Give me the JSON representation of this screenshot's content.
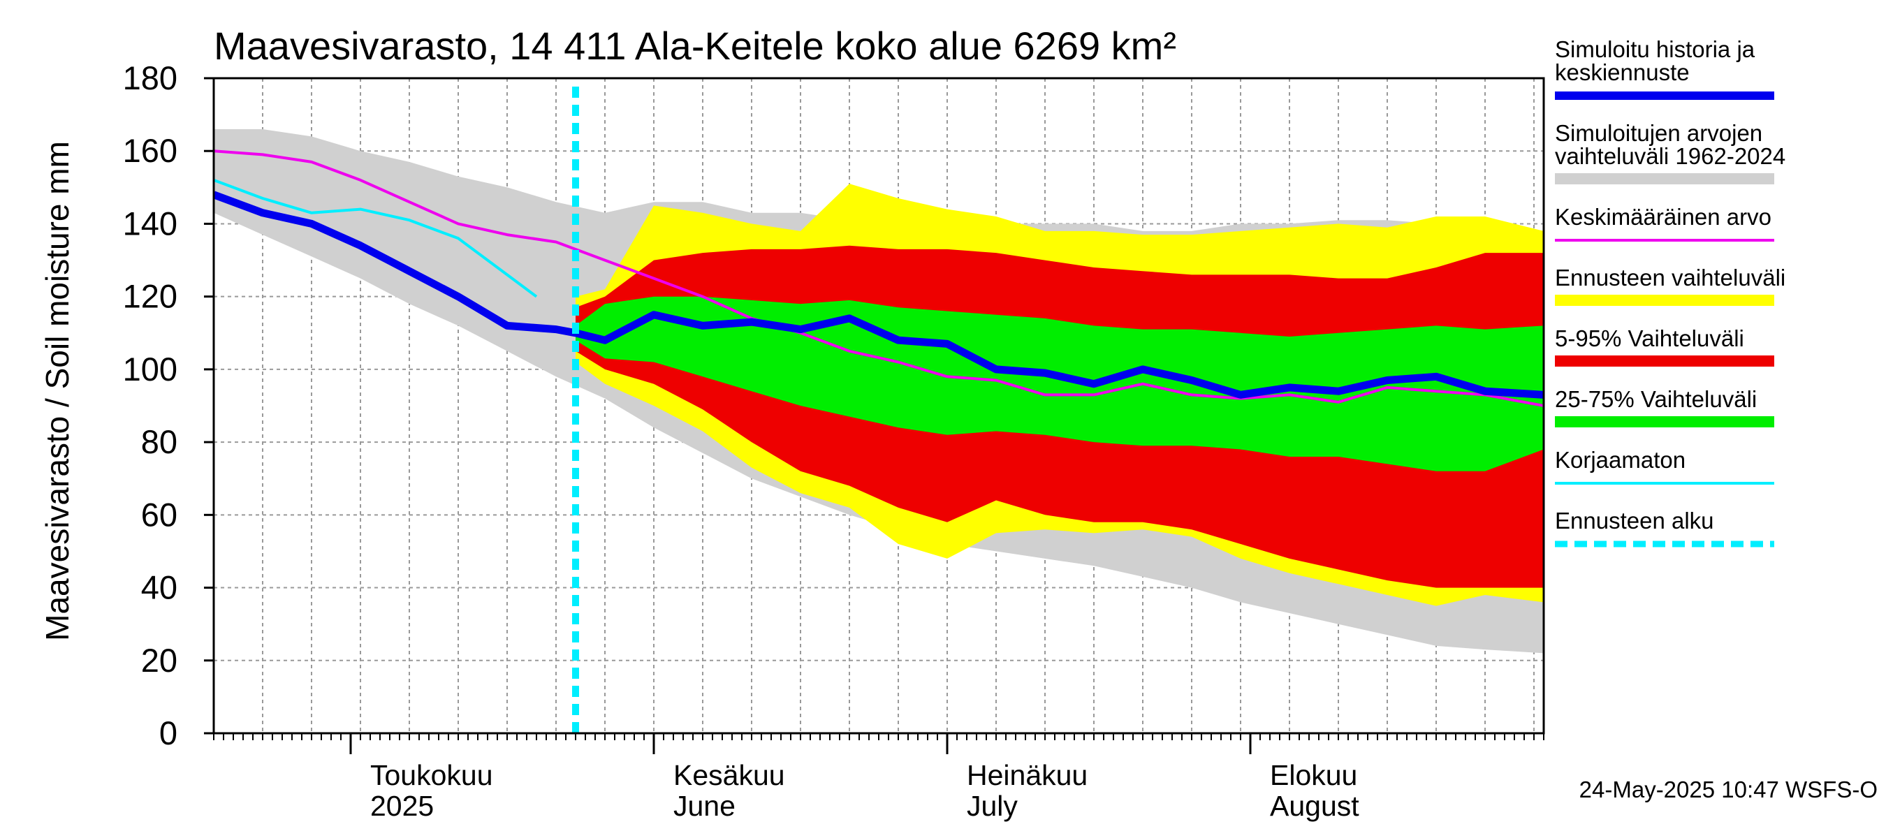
{
  "chart_data": {
    "type": "area",
    "title": "Maavesivarasto, 14 411 Ala-Keitele koko alue 6269 km²",
    "ylabel": "Maavesivarasto / Soil moisture   mm",
    "ylim": [
      0,
      180
    ],
    "yticks": [
      0,
      20,
      40,
      60,
      80,
      100,
      120,
      140,
      160,
      180
    ],
    "xlim": [
      "2025-04-17",
      "2025-08-31"
    ],
    "grid": true,
    "months": [
      {
        "date": "2025-05-01",
        "line1": "Toukokuu",
        "line2": "2025"
      },
      {
        "date": "2025-06-01",
        "line1": "Kesäkuu",
        "line2": "June"
      },
      {
        "date": "2025-07-01",
        "line1": "Heinäkuu",
        "line2": "July"
      },
      {
        "date": "2025-08-01",
        "line1": "Elokuu",
        "line2": "August"
      }
    ],
    "forecast_start": "2025-05-24",
    "timestamp": "24-May-2025 10:47 WSFS-O",
    "colors": {
      "history": "#0000ee",
      "range_hist": "#d0d0d0",
      "mean": "#ee00ee",
      "forecast_range": "#ffff00",
      "p5_95": "#ee0000",
      "p25_75": "#00ee00",
      "uncorrected": "#00eeff",
      "forecast_start": "#00eeff"
    },
    "legend": [
      {
        "key": "history",
        "line1": "Simuloitu historia ja",
        "line2": "keskiennuste"
      },
      {
        "key": "range_hist",
        "line1": "Simuloitujen arvojen",
        "line2": "vaihteluväli 1962-2024"
      },
      {
        "key": "mean",
        "line1": "Keskimääräinen arvo",
        "line2": ""
      },
      {
        "key": "forecast_range",
        "line1": "Ennusteen vaihteluväli",
        "line2": ""
      },
      {
        "key": "p5_95",
        "line1": "5-95% Vaihteluväli",
        "line2": ""
      },
      {
        "key": "p25_75",
        "line1": "25-75% Vaihteluväli",
        "line2": ""
      },
      {
        "key": "uncorrected",
        "line1": "Korjaamaton",
        "line2": ""
      },
      {
        "key": "forecast_start",
        "line1": "Ennusteen alku",
        "line2": ""
      }
    ],
    "series": {
      "range_hist": {
        "x": [
          "2025-04-17",
          "2025-04-22",
          "2025-04-27",
          "2025-05-02",
          "2025-05-07",
          "2025-05-12",
          "2025-05-17",
          "2025-05-22",
          "2025-05-27",
          "2025-06-01",
          "2025-06-06",
          "2025-06-11",
          "2025-06-16",
          "2025-06-21",
          "2025-06-26",
          "2025-07-01",
          "2025-07-06",
          "2025-07-11",
          "2025-07-16",
          "2025-07-21",
          "2025-07-26",
          "2025-07-31",
          "2025-08-05",
          "2025-08-10",
          "2025-08-15",
          "2025-08-20",
          "2025-08-25",
          "2025-08-31"
        ],
        "upper": [
          166,
          166,
          164,
          160,
          157,
          153,
          150,
          146,
          143,
          146,
          146,
          143,
          143,
          141,
          141,
          141,
          140,
          140,
          140,
          138,
          138,
          140,
          140,
          141,
          141,
          140,
          138,
          135
        ],
        "lower": [
          143,
          137,
          131,
          125,
          118,
          112,
          105,
          98,
          92,
          84,
          77,
          70,
          65,
          60,
          56,
          52,
          50,
          48,
          46,
          43,
          40,
          36,
          33,
          30,
          27,
          24,
          23,
          22
        ]
      },
      "forecast_range": {
        "x": [
          "2025-05-24",
          "2025-05-27",
          "2025-06-01",
          "2025-06-06",
          "2025-06-11",
          "2025-06-16",
          "2025-06-21",
          "2025-06-26",
          "2025-07-01",
          "2025-07-06",
          "2025-07-11",
          "2025-07-16",
          "2025-07-21",
          "2025-07-26",
          "2025-07-31",
          "2025-08-05",
          "2025-08-10",
          "2025-08-15",
          "2025-08-20",
          "2025-08-25",
          "2025-08-31"
        ],
        "upper": [
          120,
          122,
          145,
          143,
          140,
          138,
          151,
          147,
          144,
          142,
          138,
          138,
          137,
          137,
          138,
          139,
          140,
          139,
          142,
          142,
          138
        ],
        "lower": [
          102,
          96,
          90,
          83,
          73,
          66,
          62,
          52,
          48,
          55,
          56,
          55,
          56,
          54,
          48,
          44,
          41,
          38,
          35,
          38,
          36
        ]
      },
      "p5_95": {
        "x": [
          "2025-05-24",
          "2025-05-27",
          "2025-06-01",
          "2025-06-06",
          "2025-06-11",
          "2025-06-16",
          "2025-06-21",
          "2025-06-26",
          "2025-07-01",
          "2025-07-06",
          "2025-07-11",
          "2025-07-16",
          "2025-07-21",
          "2025-07-26",
          "2025-07-31",
          "2025-08-05",
          "2025-08-10",
          "2025-08-15",
          "2025-08-20",
          "2025-08-25",
          "2025-08-31"
        ],
        "upper": [
          117,
          120,
          130,
          132,
          133,
          133,
          134,
          133,
          133,
          132,
          130,
          128,
          127,
          126,
          126,
          126,
          125,
          125,
          128,
          132,
          132
        ],
        "lower": [
          105,
          100,
          96,
          89,
          80,
          72,
          68,
          62,
          58,
          64,
          60,
          58,
          58,
          56,
          52,
          48,
          45,
          42,
          40,
          40,
          40
        ]
      },
      "p25_75": {
        "x": [
          "2025-05-24",
          "2025-05-27",
          "2025-06-01",
          "2025-06-06",
          "2025-06-11",
          "2025-06-16",
          "2025-06-21",
          "2025-06-26",
          "2025-07-01",
          "2025-07-06",
          "2025-07-11",
          "2025-07-16",
          "2025-07-21",
          "2025-07-26",
          "2025-07-31",
          "2025-08-05",
          "2025-08-10",
          "2025-08-15",
          "2025-08-20",
          "2025-08-25",
          "2025-08-31"
        ],
        "upper": [
          112,
          118,
          120,
          120,
          119,
          118,
          119,
          117,
          116,
          115,
          114,
          112,
          111,
          111,
          110,
          109,
          110,
          111,
          112,
          111,
          112
        ],
        "lower": [
          108,
          103,
          102,
          98,
          94,
          90,
          87,
          84,
          82,
          83,
          82,
          80,
          79,
          79,
          78,
          76,
          76,
          74,
          72,
          72,
          78
        ]
      },
      "mean": {
        "x": [
          "2025-04-17",
          "2025-04-22",
          "2025-04-27",
          "2025-05-02",
          "2025-05-07",
          "2025-05-12",
          "2025-05-17",
          "2025-05-22",
          "2025-05-27",
          "2025-06-01",
          "2025-06-06",
          "2025-06-11",
          "2025-06-16",
          "2025-06-21",
          "2025-06-26",
          "2025-07-01",
          "2025-07-06",
          "2025-07-11",
          "2025-07-16",
          "2025-07-21",
          "2025-07-26",
          "2025-07-31",
          "2025-08-05",
          "2025-08-10",
          "2025-08-15",
          "2025-08-20",
          "2025-08-25",
          "2025-08-31"
        ],
        "values": [
          160,
          159,
          157,
          152,
          146,
          140,
          137,
          135,
          130,
          125,
          120,
          114,
          110,
          105,
          102,
          98,
          97,
          93,
          93,
          96,
          93,
          92,
          93,
          91,
          95,
          94,
          93,
          90
        ]
      },
      "history": {
        "x": [
          "2025-04-17",
          "2025-04-22",
          "2025-04-27",
          "2025-05-02",
          "2025-05-07",
          "2025-05-12",
          "2025-05-17",
          "2025-05-22",
          "2025-05-24",
          "2025-05-27",
          "2025-06-01",
          "2025-06-06",
          "2025-06-11",
          "2025-06-16",
          "2025-06-21",
          "2025-06-26",
          "2025-07-01",
          "2025-07-06",
          "2025-07-11",
          "2025-07-16",
          "2025-07-21",
          "2025-07-26",
          "2025-07-31",
          "2025-08-05",
          "2025-08-10",
          "2025-08-15",
          "2025-08-20",
          "2025-08-25",
          "2025-08-31"
        ],
        "values": [
          148,
          143,
          140,
          134,
          127,
          120,
          112,
          111,
          110,
          108,
          115,
          112,
          113,
          111,
          114,
          108,
          107,
          100,
          99,
          96,
          100,
          97,
          93,
          95,
          94,
          97,
          98,
          94,
          93
        ]
      },
      "uncorrected": {
        "x": [
          "2025-04-17",
          "2025-04-22",
          "2025-04-27",
          "2025-05-02",
          "2025-05-07",
          "2025-05-12",
          "2025-05-17",
          "2025-05-20"
        ],
        "values": [
          152,
          147,
          143,
          144,
          141,
          136,
          126,
          120
        ]
      }
    }
  }
}
